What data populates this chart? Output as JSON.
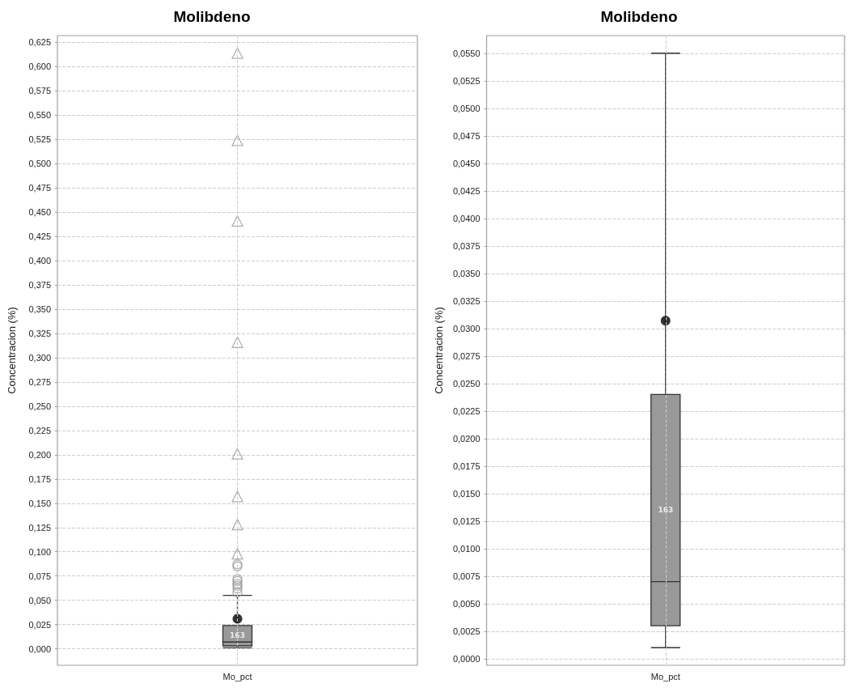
{
  "chart_data": [
    {
      "type": "box",
      "title": "Molibdeno",
      "ylabel": "Concentracion (%)",
      "categories": [
        "Mo_pct"
      ],
      "boxes": [
        {
          "low": 0.001,
          "q1": 0.003,
          "median": 0.007,
          "q3": 0.024,
          "high": 0.055,
          "mean": 0.031,
          "outliers": [
            0.058,
            0.062,
            0.065,
            0.067,
            0.07,
            0.072,
            0.085,
            0.087
          ]
        }
      ],
      "color": "#999999",
      "series": [
        {
          "type": "scatter",
          "x": [
            "Mo_pct",
            "Mo_pct",
            "Mo_pct",
            "Mo_pct",
            "Mo_pct",
            "Mo_pct",
            "Mo_pct",
            "Mo_pct"
          ],
          "values": [
            0.098,
            0.128,
            0.157,
            0.201,
            0.316,
            0.441,
            0.524,
            0.614
          ],
          "marker": "triangle",
          "color": "#999999"
        }
      ],
      "ylim": [
        -0.017,
        0.632
      ],
      "yticks": [
        {
          "value": 0,
          "label": "0,000"
        },
        {
          "value": 0.025,
          "label": "0,025"
        },
        {
          "value": 0.05,
          "label": "0,050"
        },
        {
          "value": 0.075,
          "label": "0,075"
        },
        {
          "value": 0.1,
          "label": "0,100"
        },
        {
          "value": 0.125,
          "label": "0,125"
        },
        {
          "value": 0.15,
          "label": "0,150"
        },
        {
          "value": 0.175,
          "label": "0,175"
        },
        {
          "value": 0.2,
          "label": "0,200"
        },
        {
          "value": 0.225,
          "label": "0,225"
        },
        {
          "value": 0.25,
          "label": "0,250"
        },
        {
          "value": 0.275,
          "label": "0,275"
        },
        {
          "value": 0.3,
          "label": "0,300"
        },
        {
          "value": 0.325,
          "label": "0,325"
        },
        {
          "value": 0.35,
          "label": "0,350"
        },
        {
          "value": 0.375,
          "label": "0,375"
        },
        {
          "value": 0.4,
          "label": "0,400"
        },
        {
          "value": 0.425,
          "label": "0,425"
        },
        {
          "value": 0.45,
          "label": "0,450"
        },
        {
          "value": 0.475,
          "label": "0,475"
        },
        {
          "value": 0.5,
          "label": "0,500"
        },
        {
          "value": 0.525,
          "label": "0,525"
        },
        {
          "value": 0.55,
          "label": "0,550"
        },
        {
          "value": 0.575,
          "label": "0,575"
        },
        {
          "value": 0.6,
          "label": "0,600"
        },
        {
          "value": 0.625,
          "label": "0,625"
        }
      ],
      "annotations": [
        "163"
      ],
      "grid": true
    },
    {
      "type": "box",
      "title": "Molibdeno",
      "ylabel": "Concentracion (%)",
      "categories": [
        "Mo_pct"
      ],
      "boxes": [
        {
          "low": 0.001,
          "q1": 0.003,
          "median": 0.007,
          "q3": 0.024,
          "high": 0.055,
          "mean": 0.0307
        }
      ],
      "color": "#999999",
      "ylim": [
        -0.0006,
        0.0566
      ],
      "yticks": [
        {
          "value": 0,
          "label": "0,0000"
        },
        {
          "value": 0.0025,
          "label": "0,0025"
        },
        {
          "value": 0.005,
          "label": "0,0050"
        },
        {
          "value": 0.0075,
          "label": "0,0075"
        },
        {
          "value": 0.01,
          "label": "0,0100"
        },
        {
          "value": 0.0125,
          "label": "0,0125"
        },
        {
          "value": 0.015,
          "label": "0,0150"
        },
        {
          "value": 0.0175,
          "label": "0,0175"
        },
        {
          "value": 0.02,
          "label": "0,0200"
        },
        {
          "value": 0.0225,
          "label": "0,0225"
        },
        {
          "value": 0.025,
          "label": "0,0250"
        },
        {
          "value": 0.0275,
          "label": "0,0275"
        },
        {
          "value": 0.03,
          "label": "0,0300"
        },
        {
          "value": 0.0325,
          "label": "0,0325"
        },
        {
          "value": 0.035,
          "label": "0,0350"
        },
        {
          "value": 0.0375,
          "label": "0,0375"
        },
        {
          "value": 0.04,
          "label": "0,0400"
        },
        {
          "value": 0.0425,
          "label": "0,0425"
        },
        {
          "value": 0.045,
          "label": "0,0450"
        },
        {
          "value": 0.0475,
          "label": "0,0475"
        },
        {
          "value": 0.05,
          "label": "0,0500"
        },
        {
          "value": 0.0525,
          "label": "0,0525"
        },
        {
          "value": 0.055,
          "label": "0,0550"
        }
      ],
      "annotations": [
        "163"
      ],
      "grid": true
    }
  ]
}
